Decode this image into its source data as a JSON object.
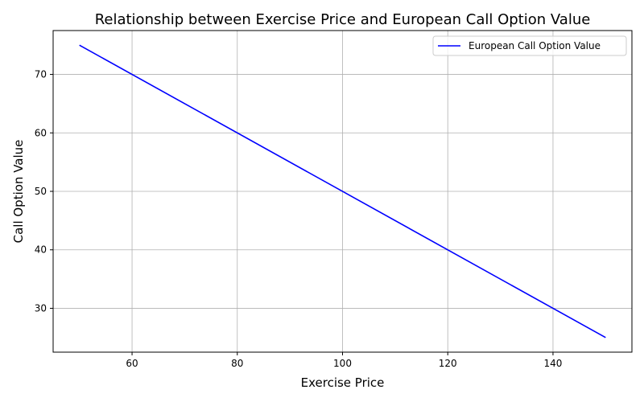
{
  "chart_data": {
    "type": "line",
    "title": "Relationship between Exercise Price and European Call Option Value",
    "xlabel": "Exercise Price",
    "ylabel": "Call Option Value",
    "xlim": [
      45,
      155
    ],
    "ylim": [
      22.5,
      77.5
    ],
    "xticks": [
      60,
      80,
      100,
      120,
      140
    ],
    "yticks": [
      30,
      40,
      50,
      60,
      70
    ],
    "xtick_labels": [
      "60",
      "80",
      "100",
      "120",
      "140"
    ],
    "ytick_labels": [
      "30",
      "40",
      "50",
      "60",
      "70"
    ],
    "grid": true,
    "legend_position": "top-right",
    "series": [
      {
        "name": "European Call Option Value",
        "color": "#0000ff",
        "x": [
          50,
          150
        ],
        "y": [
          75,
          25
        ]
      }
    ]
  }
}
